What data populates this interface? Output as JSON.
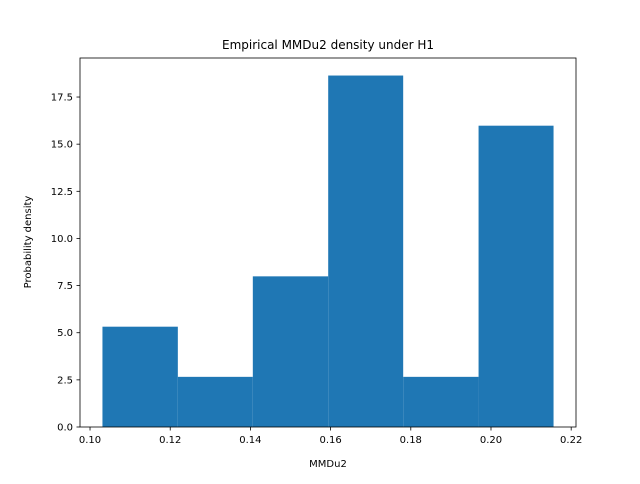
{
  "chart_data": {
    "type": "bar",
    "title": "Empirical MMDu2 density under H1",
    "xlabel": "MMDu2",
    "ylabel": "Probability density",
    "bins": [
      {
        "x0": 0.1031,
        "x1": 0.1219,
        "value": 5.32
      },
      {
        "x0": 0.1219,
        "x1": 0.1406,
        "value": 2.66
      },
      {
        "x0": 0.1406,
        "x1": 0.1594,
        "value": 7.99
      },
      {
        "x0": 0.1594,
        "x1": 0.1781,
        "value": 18.64
      },
      {
        "x0": 0.1781,
        "x1": 0.1969,
        "value": 2.66
      },
      {
        "x0": 0.1969,
        "x1": 0.2156,
        "value": 15.98
      }
    ],
    "xlim": [
      0.0975,
      0.2212
    ],
    "ylim": [
      0,
      19.57
    ],
    "xticks": [
      0.1,
      0.12,
      0.14,
      0.16,
      0.18,
      0.2,
      0.22
    ],
    "xtick_labels": [
      "0.10",
      "0.12",
      "0.14",
      "0.16",
      "0.18",
      "0.20",
      "0.22"
    ],
    "yticks": [
      0,
      2.5,
      5,
      7.5,
      10,
      12.5,
      15,
      17.5
    ],
    "ytick_labels": [
      "0.0",
      "2.5",
      "5.0",
      "7.5",
      "10.0",
      "12.5",
      "15.0",
      "17.5"
    ],
    "bar_color": "#1f77b4",
    "grid": false,
    "legend": "none"
  }
}
